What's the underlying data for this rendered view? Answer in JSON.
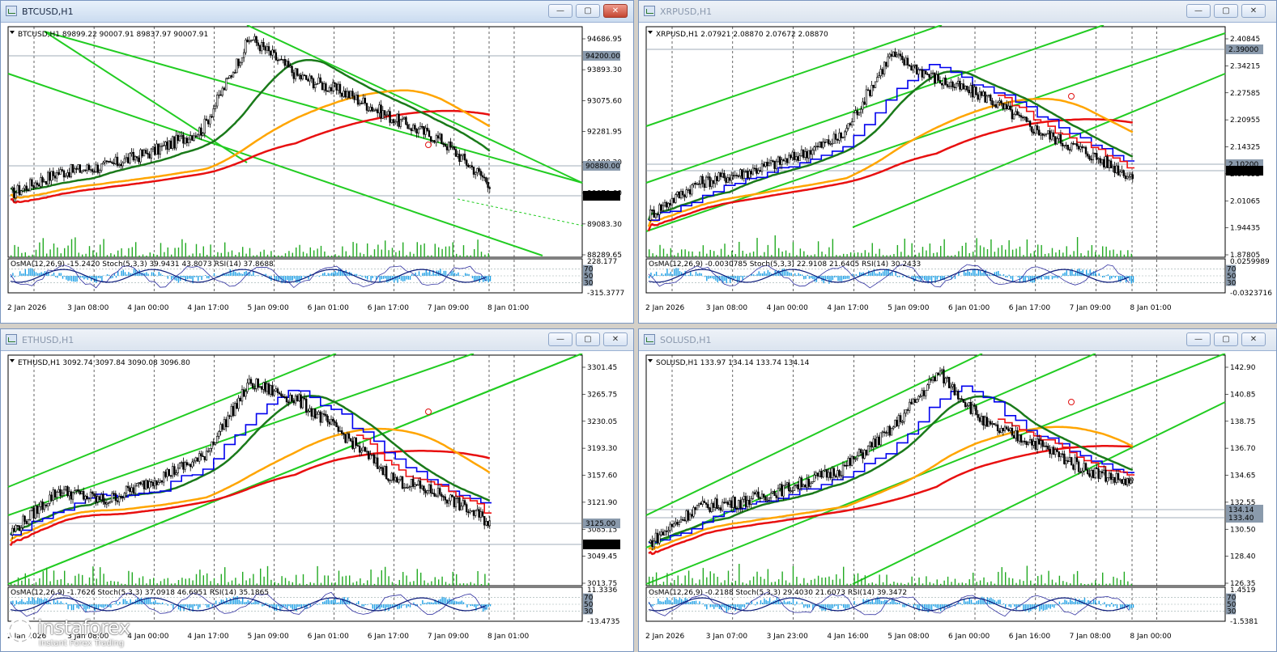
{
  "colors": {
    "channel": "#22cc22",
    "ma_fast": "#1a7a1a",
    "ma_mid": "#ffa500",
    "ma_slow": "#e81010",
    "kijun": "#0000ee",
    "tenkan": "#ee1010",
    "volume": "#22aa22",
    "histogram": "#1ea0e6",
    "bid_line": "#8090a0"
  },
  "windows": [
    {
      "title": "BTCUSD,H1",
      "info": "BTCUSD,H1  89899.22 90007.91 89837.97 90007.91",
      "indicator_info": "OsMA(12,26,9) -15.2420  Stoch(5,3,3) 39.9431 43.8073  RSI(14) 37.8688",
      "active": true,
      "price_ticks": [
        "94686.95",
        "93893.30",
        "93075.60",
        "92281.95",
        "91488.30",
        "90670.60",
        "89083.30",
        "88289.65"
      ],
      "price_labels": [
        "94200.00",
        "90880.00",
        "90007.91"
      ],
      "osc_ticks": [
        "228.177",
        "-315.3777"
      ],
      "osc_levels": [
        "70",
        "50",
        "30"
      ],
      "time_labels": [
        "2 Jan 2026",
        "3 Jan 08:00",
        "4 Jan 00:00",
        "4 Jan 17:00",
        "5 Jan 09:00",
        "6 Jan 01:00",
        "6 Jan 17:00",
        "7 Jan 09:00",
        "8 Jan 01:00"
      ]
    },
    {
      "title": "XRPUSD,H1",
      "info": "XRPUSD,H1  2.07921 2.08870 2.07672 2.08870",
      "indicator_info": "OsMA(12,26,9) -0.0030785  Stoch(5,3,3) 22.9108 21.6405  RSI(14) 30.2433",
      "active": false,
      "price_ticks": [
        "2.40845",
        "2.34215",
        "2.27585",
        "2.20955",
        "2.14325",
        "2.07695",
        "2.01065",
        "1.94435",
        "1.87805"
      ],
      "price_labels": [
        "2.39000",
        "2.10200",
        "2.08870"
      ],
      "osc_ticks": [
        "0.0259989",
        "-0.0323716"
      ],
      "osc_levels": [
        "70",
        "50",
        "30"
      ],
      "time_labels": [
        "2 Jan 2026",
        "3 Jan 08:00",
        "4 Jan 00:00",
        "4 Jan 17:00",
        "5 Jan 09:00",
        "6 Jan 01:00",
        "6 Jan 17:00",
        "7 Jan 09:00",
        "8 Jan 01:00"
      ]
    },
    {
      "title": "ETHUSD,H1",
      "info": "ETHUSD,H1  3092.74 3097.84 3090.08 3096.80",
      "indicator_info": "OsMA(12,26,9) -1.7626  Stoch(5,3,3) 37.0918 46.6951  RSI(14) 35.1865",
      "active": false,
      "price_ticks": [
        "3301.45",
        "3265.75",
        "3230.05",
        "3193.30",
        "3157.60",
        "3121.90",
        "3085.15",
        "3049.45",
        "3013.75"
      ],
      "price_labels": [
        "3125.00",
        "3096.80"
      ],
      "osc_ticks": [
        "11.3336",
        "-13.4735"
      ],
      "osc_levels": [
        "70",
        "50",
        "30"
      ],
      "time_labels": [
        "2 Jan 2026",
        "3 Jan 08:00",
        "4 Jan 00:00",
        "4 Jan 17:00",
        "5 Jan 09:00",
        "6 Jan 01:00",
        "6 Jan 17:00",
        "7 Jan 09:00",
        "8 Jan 01:00"
      ]
    },
    {
      "title": "SOLUSD,H1",
      "info": "SOLUSD,H1  133.97 134.14 133.74 134.14",
      "indicator_info": "OsMA(12,26,9) -0.2188  Stoch(5,3,3) 29.4030 21.6073  RSI(14) 39.3472",
      "active": false,
      "price_ticks": [
        "142.90",
        "140.85",
        "138.75",
        "136.70",
        "134.65",
        "132.55",
        "130.50",
        "128.40",
        "126.35"
      ],
      "price_labels": [
        "134.14",
        "133.40"
      ],
      "osc_ticks": [
        "1.4519",
        "-1.5381"
      ],
      "osc_levels": [
        "70",
        "50",
        "30"
      ],
      "time_labels": [
        "2 Jan 2026",
        "3 Jan 07:00",
        "3 Jan 23:00",
        "4 Jan 16:00",
        "5 Jan 08:00",
        "6 Jan 00:00",
        "6 Jan 16:00",
        "7 Jan 08:00",
        "8 Jan 00:00"
      ]
    }
  ],
  "logo": {
    "name": "instaforex",
    "tagline": "Instant Forex Trading"
  }
}
